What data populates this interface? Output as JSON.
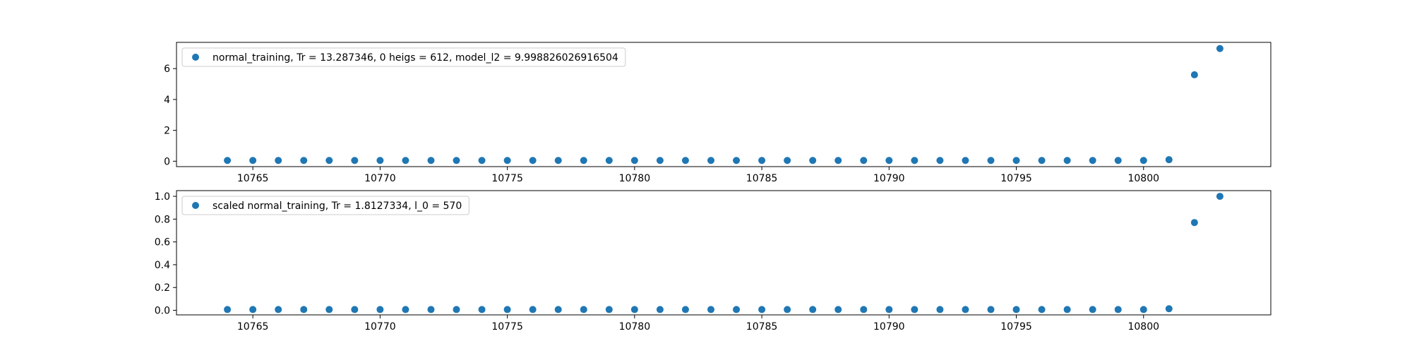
{
  "chart_data": [
    {
      "type": "scatter",
      "legend_location": "upper-left",
      "series": [
        {
          "name": "normal_training, Tr = 13.287346, 0 heigs = 612, model_l2 = 9.998826026916504",
          "color": "#1f77b4",
          "x": [
            10764,
            10765,
            10766,
            10767,
            10768,
            10769,
            10770,
            10771,
            10772,
            10773,
            10774,
            10775,
            10776,
            10777,
            10778,
            10779,
            10780,
            10781,
            10782,
            10783,
            10784,
            10785,
            10786,
            10787,
            10788,
            10789,
            10790,
            10791,
            10792,
            10793,
            10794,
            10795,
            10796,
            10797,
            10798,
            10799,
            10800,
            10801,
            10802,
            10803
          ],
          "y": [
            0.05,
            0.05,
            0.05,
            0.05,
            0.05,
            0.05,
            0.05,
            0.05,
            0.05,
            0.05,
            0.05,
            0.05,
            0.05,
            0.05,
            0.05,
            0.05,
            0.05,
            0.05,
            0.05,
            0.05,
            0.05,
            0.05,
            0.05,
            0.05,
            0.05,
            0.05,
            0.05,
            0.05,
            0.05,
            0.05,
            0.05,
            0.05,
            0.05,
            0.05,
            0.05,
            0.05,
            0.05,
            0.1,
            5.6,
            7.3
          ]
        }
      ],
      "xlim": [
        10762,
        10805
      ],
      "ylim": [
        -0.35,
        7.7
      ],
      "xticks": [
        10765,
        10770,
        10775,
        10780,
        10785,
        10790,
        10795,
        10800
      ],
      "xtick_labels": [
        "10765",
        "10770",
        "10775",
        "10780",
        "10785",
        "10790",
        "10795",
        "10800"
      ],
      "yticks": [
        0,
        2,
        4,
        6
      ],
      "ytick_labels": [
        "0",
        "2",
        "4",
        "6"
      ]
    },
    {
      "type": "scatter",
      "legend_location": "upper-left",
      "series": [
        {
          "name": "scaled normal_training, Tr = 1.8127334, l_0 = 570",
          "color": "#1f77b4",
          "x": [
            10764,
            10765,
            10766,
            10767,
            10768,
            10769,
            10770,
            10771,
            10772,
            10773,
            10774,
            10775,
            10776,
            10777,
            10778,
            10779,
            10780,
            10781,
            10782,
            10783,
            10784,
            10785,
            10786,
            10787,
            10788,
            10789,
            10790,
            10791,
            10792,
            10793,
            10794,
            10795,
            10796,
            10797,
            10798,
            10799,
            10800,
            10801,
            10802,
            10803
          ],
          "y": [
            0.007,
            0.007,
            0.007,
            0.007,
            0.007,
            0.007,
            0.007,
            0.007,
            0.007,
            0.007,
            0.007,
            0.007,
            0.007,
            0.007,
            0.007,
            0.007,
            0.007,
            0.007,
            0.007,
            0.007,
            0.007,
            0.007,
            0.007,
            0.007,
            0.007,
            0.007,
            0.007,
            0.007,
            0.007,
            0.007,
            0.007,
            0.007,
            0.007,
            0.007,
            0.007,
            0.007,
            0.007,
            0.014,
            0.77,
            1.0
          ]
        }
      ],
      "xlim": [
        10762,
        10805
      ],
      "ylim": [
        -0.04,
        1.05
      ],
      "xticks": [
        10765,
        10770,
        10775,
        10780,
        10785,
        10790,
        10795,
        10800
      ],
      "xtick_labels": [
        "10765",
        "10770",
        "10775",
        "10780",
        "10785",
        "10790",
        "10795",
        "10800"
      ],
      "yticks": [
        0,
        0.2,
        0.4,
        0.6,
        0.8,
        1.0
      ],
      "ytick_labels": [
        "0.0",
        "0.2",
        "0.4",
        "0.6",
        "0.8",
        "1.0"
      ]
    }
  ]
}
